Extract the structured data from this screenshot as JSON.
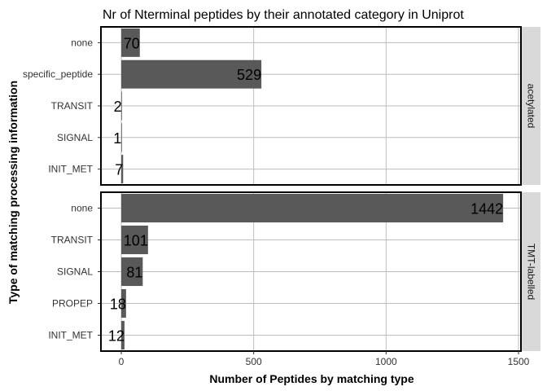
{
  "chart_data": {
    "type": "bar",
    "orientation": "horizontal",
    "title": "Nr of Nterminal peptides by their annotated category in Uniprot",
    "xlabel": "Number of Peptides by matching type",
    "ylabel": "Type of matching processing information",
    "xlim": [
      0,
      1500
    ],
    "xticks": [
      0,
      500,
      1000,
      1500
    ],
    "grid": true,
    "facets": [
      {
        "strip": "acetylated",
        "categories": [
          "none",
          "specific_peptide",
          "TRANSIT",
          "SIGNAL",
          "INIT_MET"
        ],
        "values": [
          70,
          529,
          2,
          1,
          7
        ]
      },
      {
        "strip": "TMT-labelled",
        "categories": [
          "none",
          "TRANSIT",
          "SIGNAL",
          "PROPEP",
          "INIT_MET"
        ],
        "values": [
          1442,
          101,
          81,
          18,
          12
        ]
      }
    ],
    "colors": {
      "bar": "#595959",
      "panel_border": "#000000",
      "grid": "#bdbdbd",
      "strip_bg": "#d9d9d9"
    }
  }
}
